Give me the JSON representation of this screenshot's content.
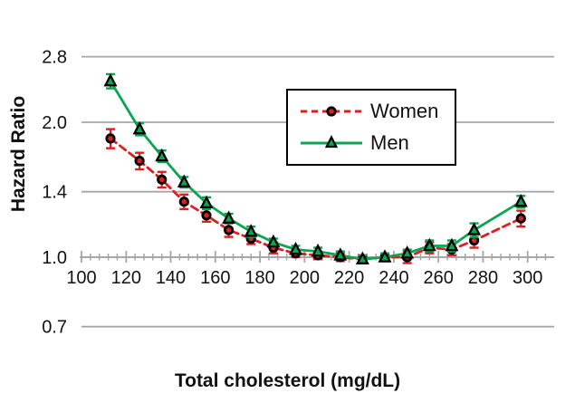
{
  "chart_data": {
    "type": "line",
    "title": "",
    "xlabel": "Total cholesterol (mg/dL)",
    "ylabel": "Hazard Ratio",
    "x_axis": {
      "scale": "linear",
      "min": 100,
      "max": 312,
      "tick_labels": [
        100,
        120,
        140,
        160,
        180,
        200,
        220,
        240,
        260,
        280,
        300
      ],
      "minor_tick_step": 4
    },
    "y_axis": {
      "scale": "log",
      "tick_labels": [
        "2.8",
        "2.0",
        "1.4",
        "1.0",
        "0.7"
      ],
      "gridlines": "horizontal",
      "baseline": 1.0
    },
    "x": [
      113,
      126,
      136,
      146,
      156,
      166,
      176,
      186,
      196,
      206,
      216,
      226,
      236,
      246,
      256,
      266,
      276,
      297
    ],
    "series": [
      {
        "name": "Women",
        "color": "#dc1f1f",
        "line_style": "dashed",
        "marker": "circle",
        "marker_fill": "#dc1f1f",
        "marker_outline": "#000000",
        "values": [
          1.84,
          1.64,
          1.49,
          1.33,
          1.24,
          1.15,
          1.1,
          1.05,
          1.02,
          1.01,
          1.0,
          0.99,
          1.0,
          1.0,
          1.05,
          1.04,
          1.09,
          1.22
        ],
        "errors": [
          0.09,
          0.07,
          0.06,
          0.05,
          0.04,
          0.04,
          0.03,
          0.03,
          0.02,
          0.02,
          0.02,
          0.02,
          0.02,
          0.03,
          0.03,
          0.03,
          0.04,
          0.05
        ]
      },
      {
        "name": "Men",
        "color": "#0aa551",
        "line_style": "solid",
        "marker": "triangle-up",
        "marker_fill": "#0aa551",
        "marker_outline": "#000000",
        "values": [
          2.47,
          1.93,
          1.68,
          1.47,
          1.32,
          1.22,
          1.14,
          1.08,
          1.04,
          1.03,
          1.01,
          0.99,
          1.0,
          1.02,
          1.06,
          1.06,
          1.15,
          1.33
        ],
        "errors": [
          0.09,
          0.06,
          0.05,
          0.04,
          0.04,
          0.03,
          0.03,
          0.02,
          0.02,
          0.02,
          0.02,
          0.02,
          0.02,
          0.02,
          0.03,
          0.03,
          0.04,
          0.04
        ]
      }
    ],
    "legend": {
      "position": "inside-top-right",
      "border_color": "#000000",
      "background": "#ffffff"
    },
    "colors": {
      "gridline": "#a6a6a6",
      "axis": "#a6a6a6",
      "text": "#111111"
    }
  }
}
